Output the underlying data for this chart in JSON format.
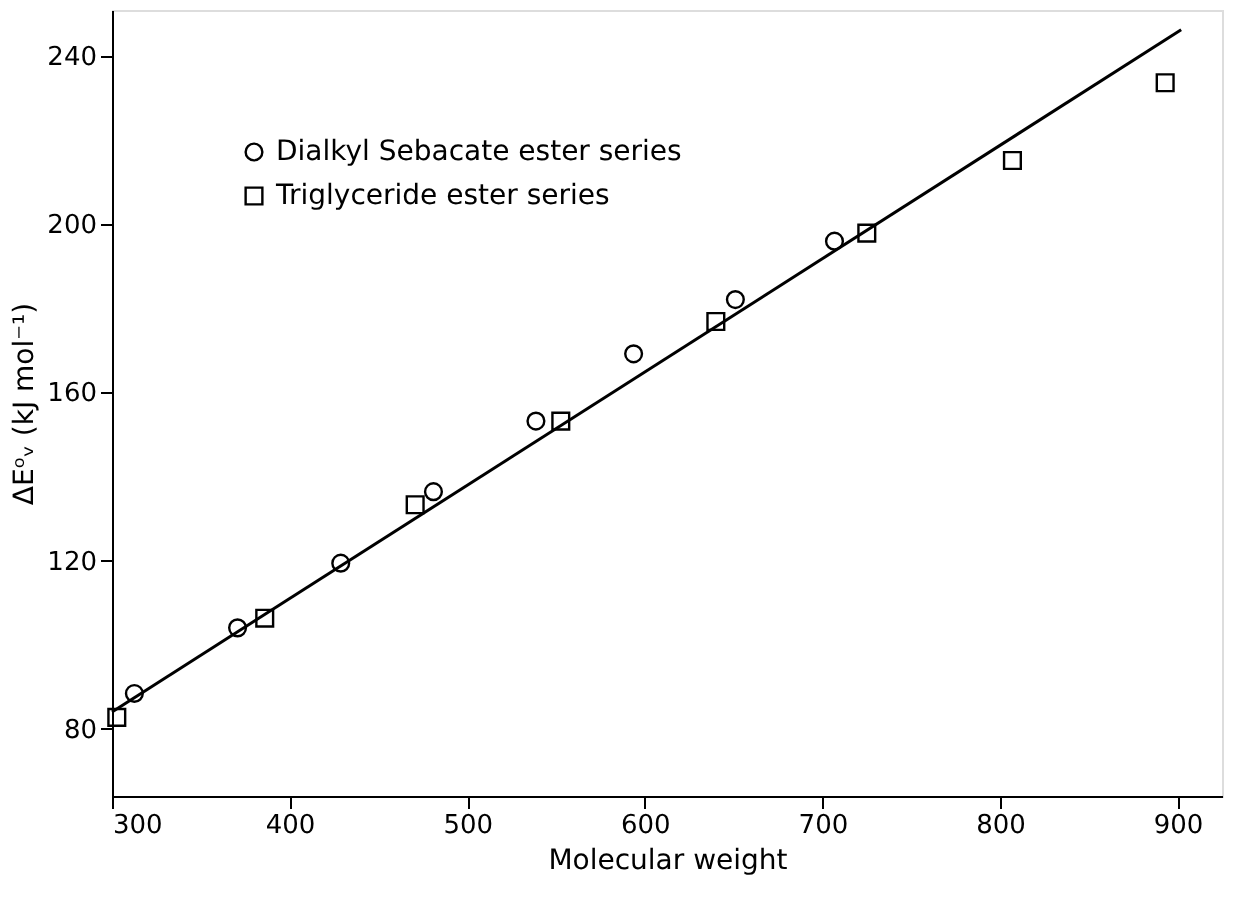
{
  "chart_data": {
    "type": "scatter",
    "xlabel": "Molecular weight",
    "ylabel": "ΔEᵒᵥ (kJ mol⁻¹)",
    "xlim": [
      300,
      925
    ],
    "ylim": [
      64,
      251
    ],
    "xticks": [
      300,
      400,
      500,
      600,
      700,
      800,
      900
    ],
    "yticks": [
      80,
      120,
      160,
      200,
      240
    ],
    "grid": false,
    "legend": "top left",
    "series": [
      {
        "name": "Dialkyl Sebacate ester series",
        "color": "#000000",
        "marker": "circle",
        "x": [
          312.6,
          370.7,
          428.8,
          481,
          538.7,
          593.7,
          651,
          706.8
        ],
        "values": [
          88.4,
          104,
          119.4,
          136.4,
          153.2,
          169.2,
          182.1,
          196
        ]
      },
      {
        "name": "Triglyceride ester series",
        "color": "#000000",
        "marker": "square",
        "x": [
          302.7,
          386,
          470.7,
          552.7,
          640,
          725,
          807,
          893
        ],
        "values": [
          82.7,
          106.3,
          133.3,
          153.2,
          176.9,
          197.9,
          215.2,
          233.7
        ]
      },
      {
        "type": "line",
        "color": "#000000",
        "line_style": "solid",
        "marker": "none",
        "x": [
          300,
          902
        ],
        "values": [
          84,
          246.3
        ]
      }
    ]
  }
}
